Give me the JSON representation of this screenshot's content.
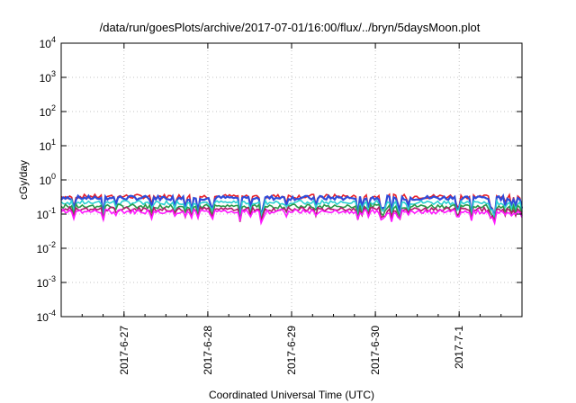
{
  "chart_data": {
    "type": "line",
    "title": "/data/run/goesPlots/archive/2017-07-01/16:00/flux/../bryn/5daysMoon.plot",
    "xlabel": "Coordinated Universal Time (UTC)",
    "ylabel": "cGy/day",
    "yscale": "log",
    "ylim": [
      0.0001,
      10000
    ],
    "y_ticks": [
      {
        "base": "10",
        "exp": "-4"
      },
      {
        "base": "10",
        "exp": "-3"
      },
      {
        "base": "10",
        "exp": "-2"
      },
      {
        "base": "10",
        "exp": "-1"
      },
      {
        "base": "10",
        "exp": "0"
      },
      {
        "base": "10",
        "exp": "1"
      },
      {
        "base": "10",
        "exp": "2"
      },
      {
        "base": "10",
        "exp": "3"
      },
      {
        "base": "10",
        "exp": "4"
      }
    ],
    "xlim": [
      "2017-06-26 06:00",
      "2017-07-01 18:00"
    ],
    "x_ticks": [
      {
        "date": "2017-06-27",
        "label": "2017-6-27"
      },
      {
        "date": "2017-06-28",
        "label": "2017-6-28"
      },
      {
        "date": "2017-06-29",
        "label": "2017-6-29"
      },
      {
        "date": "2017-06-30",
        "label": "2017-6-30"
      },
      {
        "date": "2017-07-01",
        "label": "2017-7-1"
      }
    ],
    "grid": true,
    "series": [
      {
        "color": "#e8202a",
        "baseline": 0.33,
        "dip_factor": 0.85
      },
      {
        "color": "#2f4bd8",
        "baseline": 0.3,
        "dip_factor": 0.8
      },
      {
        "color": "#2ad1d1",
        "baseline": 0.22,
        "dip_factor": 0.7
      },
      {
        "color": "#2a9a4a",
        "baseline": 0.17,
        "dip_factor": 0.65
      },
      {
        "color": "#b0186a",
        "baseline": 0.14,
        "dip_factor": 0.6
      },
      {
        "color": "#ff18ff",
        "baseline": 0.12,
        "dip_factor": 0.55
      }
    ]
  }
}
